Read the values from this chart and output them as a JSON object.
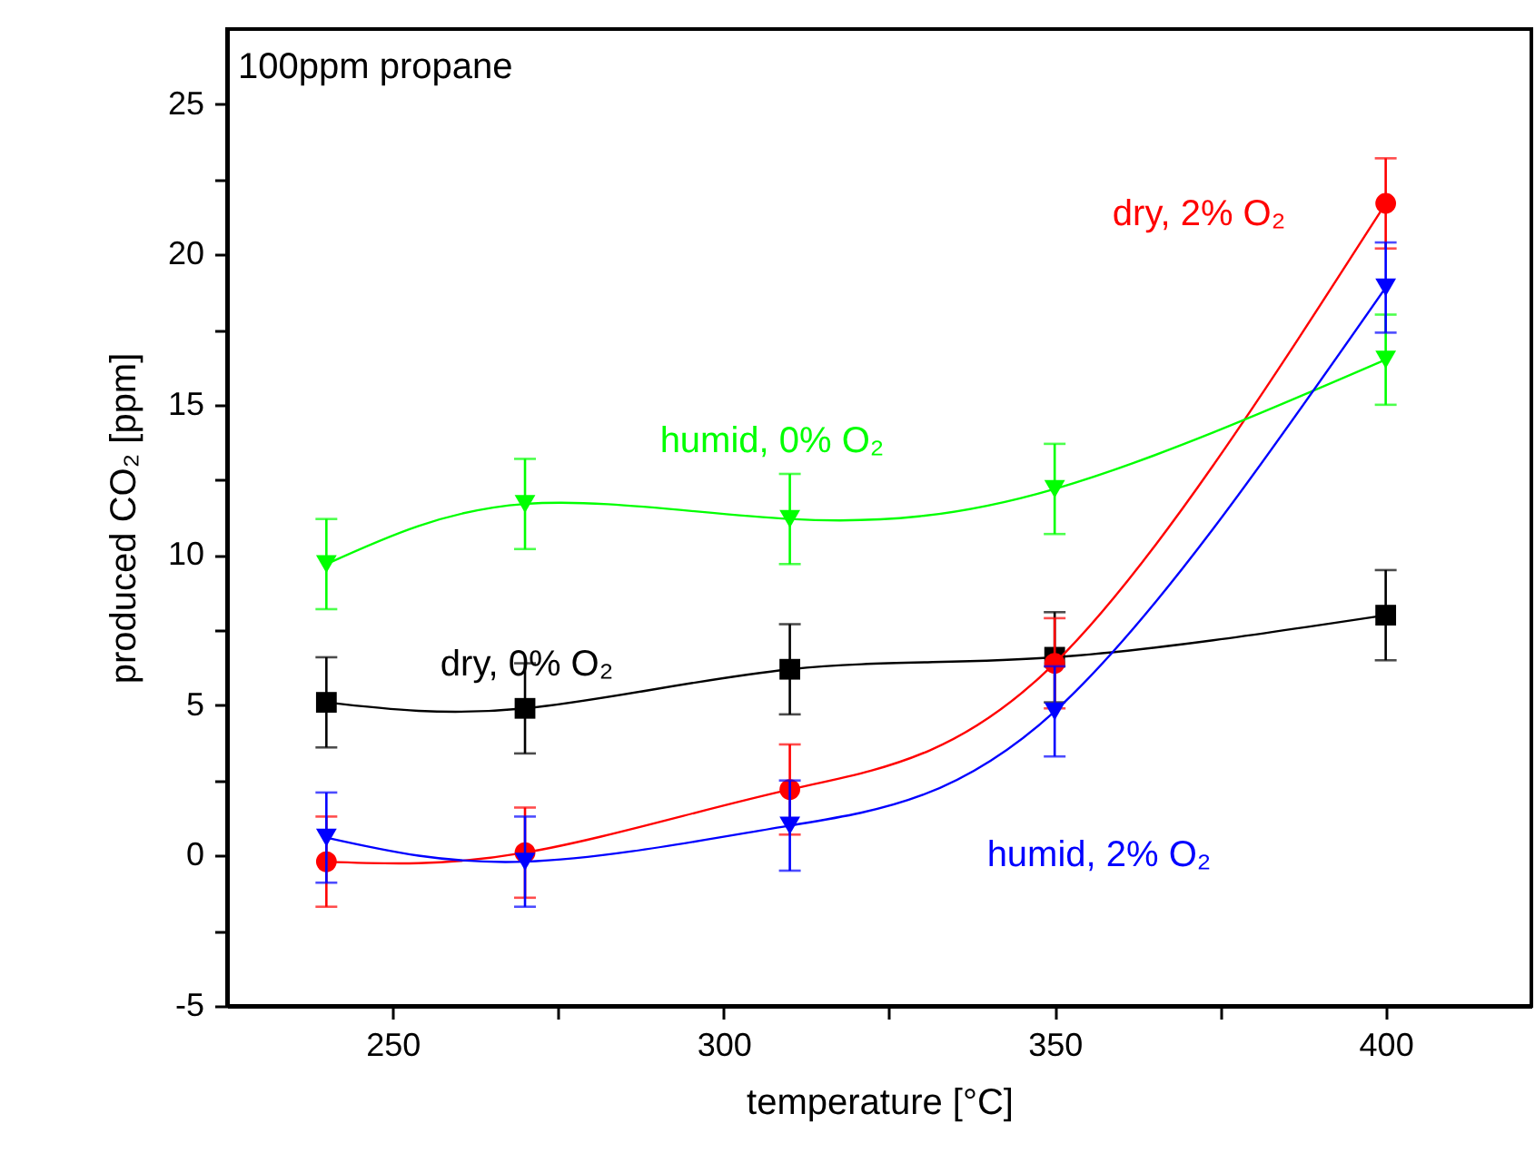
{
  "chart_data": {
    "type": "line",
    "xlabel": "temperature [°C]",
    "ylabel": "produced CO₂ [ppm]",
    "annotations": [
      "100ppm propane"
    ],
    "x": [
      240,
      270,
      310,
      350,
      400
    ],
    "xlim": [
      225,
      422
    ],
    "xticks": [
      250,
      {
        "value": 275,
        "label": null
      },
      300,
      {
        "value": 325,
        "label": null
      },
      350,
      {
        "value": 375,
        "label": null
      },
      400
    ],
    "ylim": [
      -5,
      27.5
    ],
    "yticks": [
      -5,
      {
        "value": -2.5,
        "label": null
      },
      0,
      {
        "value": 2.5,
        "label": null
      },
      5,
      {
        "value": 7.5,
        "label": null
      },
      10,
      {
        "value": 12.5,
        "label": null
      },
      15,
      {
        "value": 17.5,
        "label": null
      },
      20,
      {
        "value": 22.5,
        "label": null
      },
      25
    ],
    "grid": false,
    "series": [
      {
        "name": "dry, 0% O₂",
        "color": "#000000",
        "marker": "square",
        "values": [
          5.1,
          4.9,
          6.2,
          6.6,
          8.0
        ],
        "errors": [
          1.5,
          1.5,
          1.5,
          1.5,
          1.5
        ]
      },
      {
        "name": "dry, 2% O₂",
        "color": "#ff0000",
        "marker": "circle",
        "values": [
          -0.2,
          0.1,
          2.2,
          6.4,
          21.7
        ],
        "errors": [
          1.5,
          1.5,
          1.5,
          1.5,
          1.5
        ]
      },
      {
        "name": "humid, 0% O₂",
        "color": "#00ff00",
        "marker": "triangle",
        "values": [
          9.7,
          11.7,
          11.2,
          12.2,
          16.5
        ],
        "errors": [
          1.5,
          1.5,
          1.5,
          1.5,
          1.5
        ]
      },
      {
        "name": "humid, 2% O₂",
        "color": "#0000ff",
        "marker": "triangle",
        "values": [
          0.6,
          -0.2,
          1.0,
          4.8,
          18.9
        ],
        "errors": [
          1.5,
          1.5,
          1.5,
          1.5,
          1.5
        ]
      }
    ]
  }
}
